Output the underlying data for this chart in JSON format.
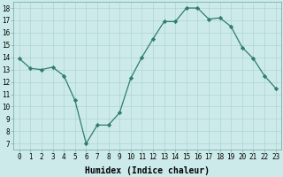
{
  "x": [
    0,
    1,
    2,
    3,
    4,
    5,
    6,
    7,
    8,
    9,
    10,
    11,
    12,
    13,
    14,
    15,
    16,
    17,
    18,
    19,
    20,
    21,
    22,
    23
  ],
  "y": [
    13.9,
    13.1,
    13.0,
    13.2,
    12.5,
    10.5,
    7.0,
    8.5,
    8.5,
    9.5,
    12.3,
    14.0,
    15.5,
    16.9,
    16.9,
    18.0,
    18.0,
    17.1,
    17.2,
    16.5,
    14.8,
    13.9,
    12.5,
    11.5
  ],
  "line_color": "#2e7d6e",
  "marker": "D",
  "markersize": 2.2,
  "linewidth": 0.9,
  "bg_color": "#cdeaea",
  "grid_color": "#afd4d4",
  "xlabel": "Humidex (Indice chaleur)",
  "xlabel_fontsize": 7,
  "tick_fontsize": 5.5,
  "ylim": [
    6.5,
    18.5
  ],
  "xlim": [
    -0.5,
    23.5
  ],
  "yticks": [
    7,
    8,
    9,
    10,
    11,
    12,
    13,
    14,
    15,
    16,
    17,
    18
  ],
  "xticks": [
    0,
    1,
    2,
    3,
    4,
    5,
    6,
    7,
    8,
    9,
    10,
    11,
    12,
    13,
    14,
    15,
    16,
    17,
    18,
    19,
    20,
    21,
    22,
    23
  ]
}
